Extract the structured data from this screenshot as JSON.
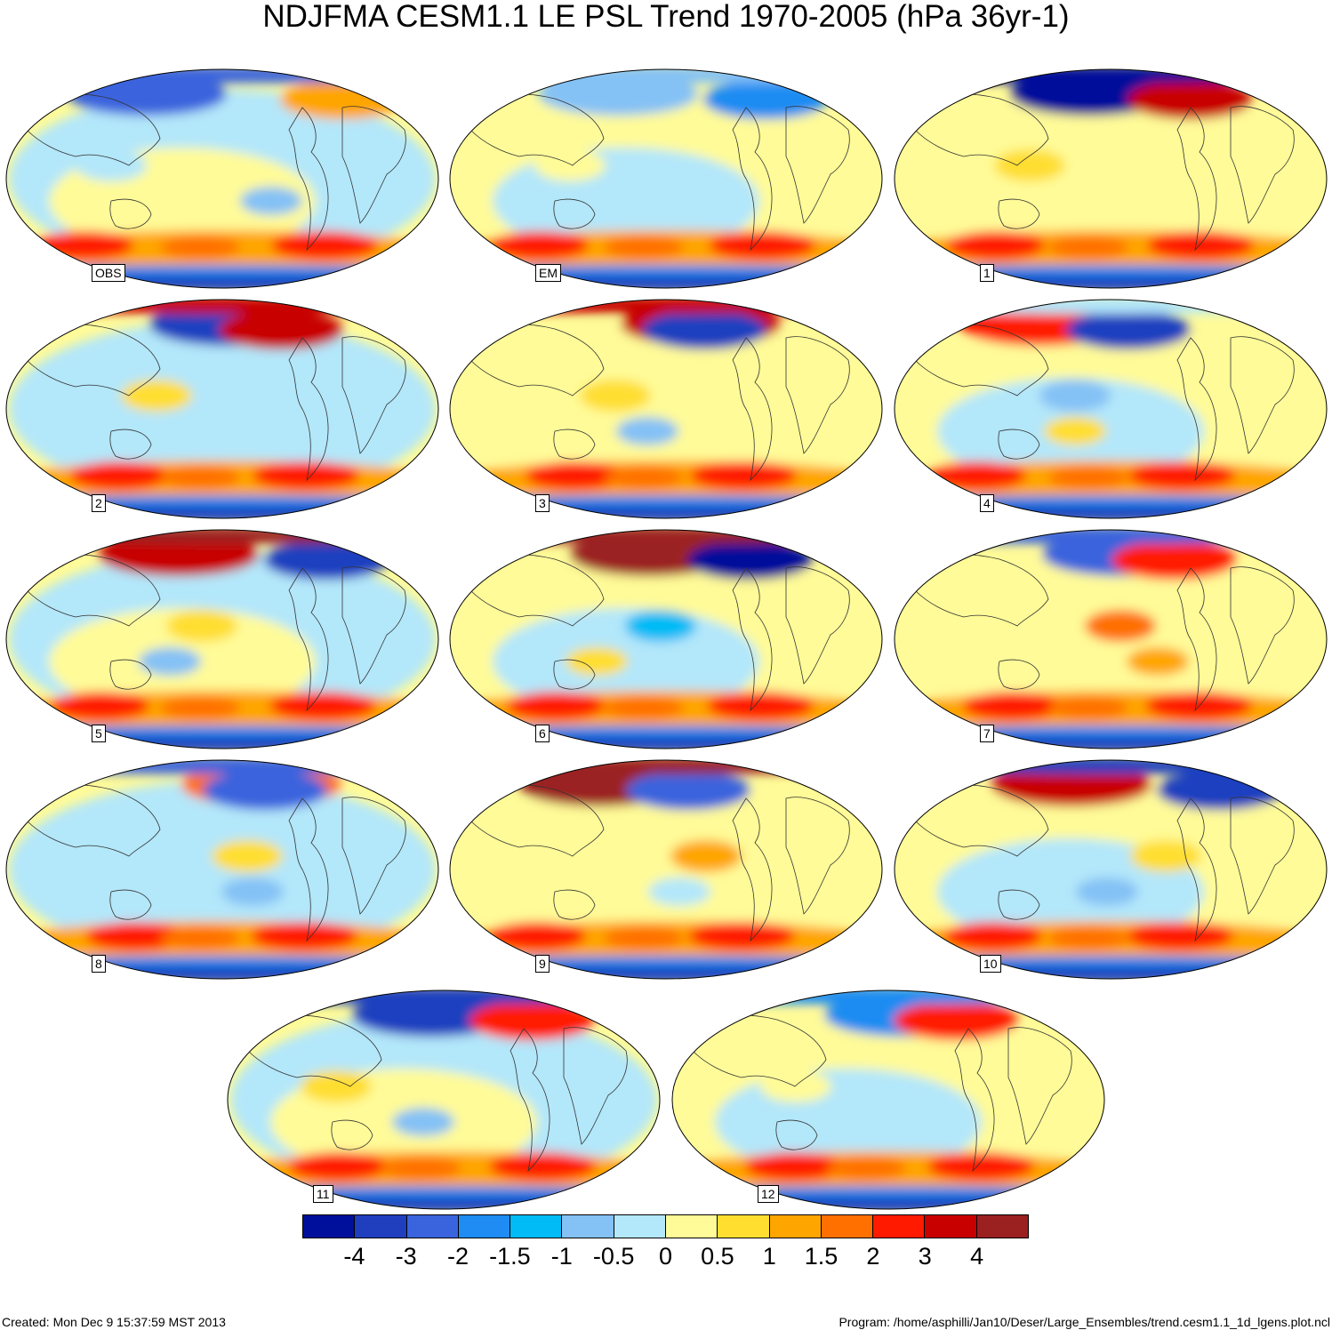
{
  "title": "NDJFMA CESM1.1 LE PSL Trend 1970-2005 (hPa 36yr-1)",
  "panels": [
    {
      "label": "OBS"
    },
    {
      "label": "EM"
    },
    {
      "label": "1"
    },
    {
      "label": "2"
    },
    {
      "label": "3"
    },
    {
      "label": "4"
    },
    {
      "label": "5"
    },
    {
      "label": "6"
    },
    {
      "label": "7"
    },
    {
      "label": "8"
    },
    {
      "label": "9"
    },
    {
      "label": "10"
    },
    {
      "label": "11"
    },
    {
      "label": "12"
    }
  ],
  "colorbar": {
    "colors": [
      "#00109a",
      "#1f3fbf",
      "#3a64dd",
      "#1e8cf2",
      "#00bbf5",
      "#84c1f5",
      "#b3e7fa",
      "#fffb98",
      "#ffde30",
      "#ffa500",
      "#ff7000",
      "#ff1a00",
      "#c80000",
      "#9b2020"
    ],
    "tick_labels": [
      "-4",
      "-3",
      "-2",
      "-1.5",
      "-1",
      "-0.5",
      "0",
      "0.5",
      "1",
      "1.5",
      "2",
      "3",
      "4"
    ]
  },
  "footer": {
    "created": "Created: Mon Dec  9 15:37:59 MST 2013",
    "program": "Program: /home/asphilli/Jan10/Deser/Large_Ensembles/trend.cesm1.1_1d_lgens.plot.ncl"
  }
}
